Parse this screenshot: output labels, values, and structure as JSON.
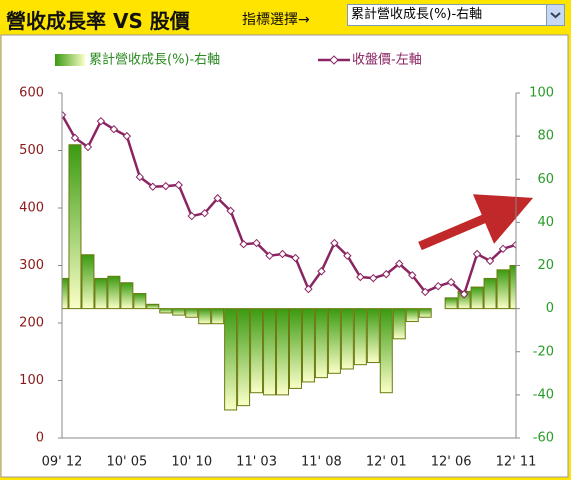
{
  "header": {
    "title": "營收成長率 VS 股價",
    "selector_label": "指標選擇→",
    "selected": "累計營收成長(%)-右軸"
  },
  "chart_data": {
    "type": "combo",
    "categories": [
      "09' 12",
      null,
      null,
      null,
      null,
      "10' 05",
      null,
      null,
      null,
      null,
      "10' 10",
      null,
      null,
      null,
      null,
      "11' 03",
      null,
      null,
      null,
      null,
      "11' 08",
      null,
      null,
      null,
      null,
      "12' 01",
      null,
      null,
      null,
      null,
      "12' 06",
      null,
      null,
      null,
      null,
      "12' 11"
    ],
    "series": [
      {
        "name": "累計營收成長(%)-右軸",
        "type": "bar",
        "axis": "y2",
        "color": "#3a9a10",
        "values": [
          14,
          76,
          25,
          14,
          15,
          12,
          7,
          2,
          -2,
          -3,
          -4,
          -7,
          -7,
          -47,
          -45,
          -39,
          -40,
          -40,
          -37,
          -34,
          -32,
          -30,
          -28,
          -26,
          -25,
          -39,
          -14,
          -6,
          -4,
          0,
          5,
          8,
          10,
          14,
          18,
          20
        ]
      },
      {
        "name": "收盤價-左軸",
        "type": "line",
        "color": "#8b2462",
        "values": [
          562,
          522,
          506,
          551,
          537,
          525,
          454,
          437,
          438,
          440,
          386,
          391,
          417,
          395,
          337,
          339,
          317,
          320,
          313,
          259,
          290,
          339,
          317,
          280,
          278,
          285,
          303,
          283,
          254,
          264,
          271,
          250,
          320,
          308,
          329,
          336
        ]
      }
    ],
    "ylim": [
      0,
      600
    ],
    "yticks": [
      0,
      100,
      200,
      300,
      400,
      500,
      600
    ],
    "ytick_color": "#8b1a1a",
    "y2lim": [
      -60,
      100
    ],
    "y2ticks": [
      -60,
      -40,
      -20,
      0,
      20,
      40,
      60,
      80,
      100
    ],
    "y2tick_color": "#2a9a2a"
  }
}
